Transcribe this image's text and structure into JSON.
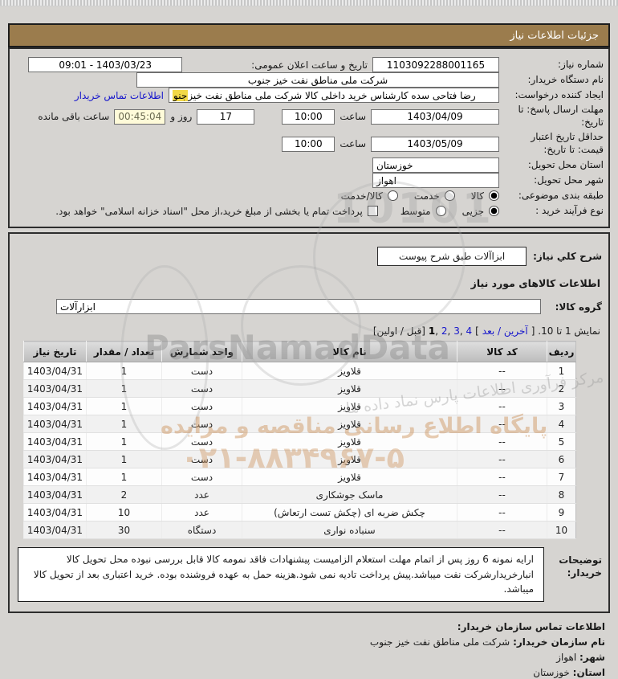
{
  "page": {
    "title": "جزئیات اطلاعات نیاز"
  },
  "form": {
    "need_number_label": "شماره نیاز:",
    "need_number_value": "1103092288001165",
    "announce_label": "تاریخ و ساعت اعلان عمومی:",
    "announce_value": "1403/03/23 - 09:01",
    "buyer_org_label": "نام دستگاه خریدار:",
    "buyer_org_value": "شرکت ملی مناطق نفت خیز جنوب",
    "creator_label": "ایجاد کننده درخواست:",
    "creator_value_main": "رضا فتاحی سده  کارشناس خرید داخلی کالا  شرکت ملی مناطق نفت خیز ",
    "creator_value_highlight": "جنو",
    "contact_link": "اطلاعات تماس خریدار",
    "deadline_label": "مهلت ارسال پاسخ: تا تاریخ:",
    "deadline_date": "1403/04/09",
    "hour_label": "ساعت",
    "deadline_time": "10:00",
    "days_value": "17",
    "days_and_label": "روز و",
    "countdown_value": "00:45:04",
    "remaining_label": "ساعت باقی مانده",
    "validity_label": "حداقل تاریخ اعتبار قیمت: تا تاریخ:",
    "validity_date": "1403/05/09",
    "validity_time": "10:00",
    "province_label": "استان محل تحویل:",
    "province_value": "خوزستان",
    "city_label": "شهر محل تحویل:",
    "city_value": "اهواز",
    "category_label": "طبقه بندی موضوعی:",
    "category_options": [
      {
        "label": "کالا",
        "selected": true
      },
      {
        "label": "خدمت",
        "selected": false
      },
      {
        "label": "کالا/خدمت",
        "selected": false
      }
    ],
    "process_label": "نوع فرآیند خرید :",
    "process_options": [
      {
        "label": "جزیی",
        "selected": true
      },
      {
        "label": "متوسط",
        "selected": false
      }
    ],
    "treasury_checkbox_label": "پرداخت تمام یا بخشی از مبلغ خرید،از محل \"اسناد خزانه اسلامی\" خواهد بود.",
    "treasury_checked": false
  },
  "goods": {
    "desc_label": "شرح کلي نیاز:",
    "desc_value": "ابزاآلات طبق شرح پیوست",
    "section_title": "اطلاعات کالاهای مورد نیاز",
    "group_label": "گروه کالا:",
    "group_value": "ابزارآلات",
    "pagination": {
      "prefix": "نمایش 1 تا 10. [",
      "last_next_link": "آخرین / بعد",
      "bracket_close": "]",
      "pages": [
        {
          "label": "1",
          "current": true
        },
        {
          "label": "2",
          "current": false
        },
        {
          "label": "3",
          "current": false
        },
        {
          "label": "4",
          "current": false
        }
      ],
      "prev_first": "[قبل / اولین]"
    },
    "table": {
      "headers": [
        "ردیف",
        "کد کالا",
        "نام کالا",
        "واحد شمارش",
        "تعداد / مقدار",
        "تاریخ نیاز"
      ],
      "rows": [
        {
          "row": "1",
          "code": "--",
          "name": "قلاویز",
          "unit": "دست",
          "qty": "1",
          "date": "1403/04/31"
        },
        {
          "row": "2",
          "code": "--",
          "name": "قلاویز",
          "unit": "دست",
          "qty": "1",
          "date": "1403/04/31"
        },
        {
          "row": "3",
          "code": "--",
          "name": "قلاویز",
          "unit": "دست",
          "qty": "1",
          "date": "1403/04/31"
        },
        {
          "row": "4",
          "code": "--",
          "name": "قلاویز",
          "unit": "دست",
          "qty": "1",
          "date": "1403/04/31"
        },
        {
          "row": "5",
          "code": "--",
          "name": "قلاویز",
          "unit": "دست",
          "qty": "1",
          "date": "1403/04/31"
        },
        {
          "row": "6",
          "code": "--",
          "name": "قلاویز",
          "unit": "دست",
          "qty": "1",
          "date": "1403/04/31"
        },
        {
          "row": "7",
          "code": "--",
          "name": "قلاویز",
          "unit": "دست",
          "qty": "1",
          "date": "1403/04/31"
        },
        {
          "row": "8",
          "code": "--",
          "name": "ماسک جوشکاری",
          "unit": "عدد",
          "qty": "2",
          "date": "1403/04/31"
        },
        {
          "row": "9",
          "code": "--",
          "name": "چکش ضربه ای (چکش تست ارتعاش)",
          "unit": "عدد",
          "qty": "10",
          "date": "1403/04/31"
        },
        {
          "row": "10",
          "code": "--",
          "name": "سنباده نواری",
          "unit": "دستگاه",
          "qty": "30",
          "date": "1403/04/31"
        }
      ]
    },
    "notes_label": "توضیحات خریدار:",
    "notes_text": "ارایه نمونه 6 روز پس از اتمام مهلت استعلام الزامیست پیشنهادات فاقد نمومه کالا قابل بررسی نبوده محل تحویل کالا انبارخریدارشرکت نفت میباشد.پیش پرداخت تادیه نمی شود.هزینه حمل به عهده فروشنده بوده. خرید اعتباری بعد از تحویل کالا میباشد."
  },
  "footer": {
    "contact_title": "اطلاعات تماس سازمان خریدار:",
    "org_label": "نام سازمان خریدار:",
    "org_value": "شرکت ملی مناطق نفت خیز جنوب",
    "city_label": "شهر:",
    "city_value": "اهواز",
    "province_label": "استان:",
    "province_value": "خوزستان"
  },
  "watermarks": {
    "brand_en": "ParsNamadData",
    "tagline": "پایگاه اطلاع رسانی مناقصه و مزایده",
    "phone": "۰۲۱-۸۸۳۴۹۶۷-۵",
    "brand_fa": "مرکز فرآوری اطلاعات پارس نماد داده ها",
    "digits": "10101"
  },
  "colors": {
    "title_bar_bg": "#9b7c4d",
    "highlight_yellow": "#f2d847",
    "countdown_bg": "#fffbd9",
    "link_blue": "#1414cc",
    "watermark_orange": "#d09a68"
  }
}
